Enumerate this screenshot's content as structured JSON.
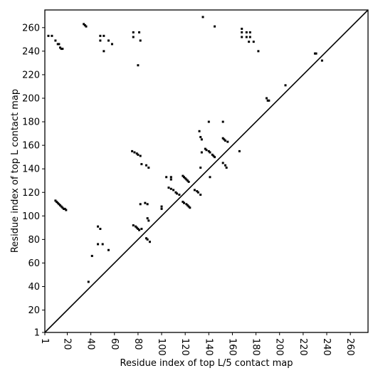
{
  "chart_data": {
    "type": "scatter",
    "xlabel": "Residue index of top L/5 contact map",
    "ylabel": "Residue index of top L contact map",
    "color": "#000000",
    "diagonal": true,
    "xlim": [
      1,
      275
    ],
    "ylim": [
      1,
      275
    ],
    "xticks": [
      1,
      20,
      40,
      60,
      80,
      100,
      120,
      140,
      160,
      180,
      200,
      220,
      240,
      260
    ],
    "yticks": [
      1,
      20,
      40,
      60,
      80,
      100,
      120,
      140,
      160,
      180,
      200,
      220,
      240,
      260
    ],
    "x": [
      34,
      35,
      36,
      4,
      7,
      10,
      12,
      13,
      14,
      15,
      16,
      48,
      51,
      48,
      51,
      55,
      58,
      76,
      76,
      81,
      82,
      80,
      10,
      11,
      12,
      13,
      14,
      15,
      16,
      17,
      18,
      19,
      46,
      48,
      46,
      50,
      41,
      55,
      38,
      76,
      78,
      79,
      80,
      81,
      83,
      86,
      88,
      88,
      89,
      87,
      88,
      90,
      82,
      75,
      77,
      79,
      80,
      82,
      83,
      87,
      89,
      100,
      100,
      104,
      108,
      108,
      106,
      108,
      110,
      112,
      113,
      115,
      118,
      119,
      120,
      121,
      122,
      123,
      118,
      119,
      121,
      122,
      123,
      124,
      128,
      130,
      131,
      133,
      132,
      133,
      134,
      134,
      133,
      137,
      138,
      140,
      141,
      143,
      144,
      145,
      140,
      141,
      152,
      152,
      153,
      154,
      156,
      152,
      154,
      155,
      135,
      145,
      166,
      168,
      168,
      168,
      172,
      172,
      175,
      175,
      178,
      174,
      182,
      189,
      190,
      191,
      205,
      230,
      231,
      236
    ],
    "y": [
      263,
      262,
      261,
      253,
      253,
      249,
      246,
      246,
      243,
      242,
      242,
      253,
      253,
      249,
      240,
      249,
      246,
      256,
      252,
      256,
      249,
      228,
      113,
      112,
      111,
      110,
      109,
      108,
      107,
      106,
      106,
      105,
      91,
      89,
      76,
      76,
      66,
      71,
      44,
      92,
      91,
      90,
      89,
      88,
      89,
      111,
      110,
      98,
      96,
      81,
      80,
      78,
      110,
      155,
      154,
      153,
      152,
      151,
      144,
      143,
      141,
      108,
      106,
      133,
      133,
      131,
      124,
      123,
      122,
      120,
      119,
      118,
      134,
      133,
      132,
      131,
      130,
      129,
      112,
      111,
      110,
      109,
      108,
      107,
      122,
      121,
      120,
      118,
      172,
      167,
      165,
      154,
      141,
      157,
      156,
      155,
      154,
      152,
      151,
      150,
      180,
      133,
      180,
      166,
      165,
      164,
      163,
      145,
      143,
      141,
      269,
      261,
      155,
      259,
      256,
      252,
      256,
      252,
      256,
      252,
      248,
      248,
      240,
      200,
      198,
      198,
      211,
      238,
      238,
      232
    ]
  }
}
